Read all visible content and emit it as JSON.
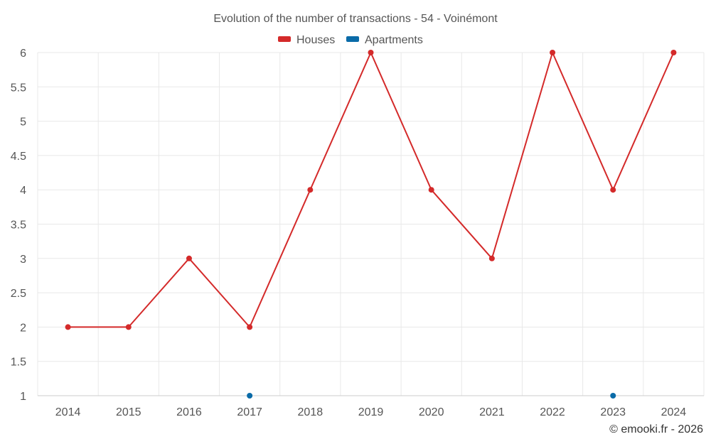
{
  "chart_data": {
    "type": "line",
    "title": "Evolution of the number of transactions - 54 - Voinémont",
    "categories": [
      "2014",
      "2015",
      "2016",
      "2017",
      "2018",
      "2019",
      "2020",
      "2021",
      "2022",
      "2023",
      "2024"
    ],
    "series": [
      {
        "name": "Houses",
        "color": "#d42a2a",
        "values": [
          2,
          2,
          3,
          2,
          4,
          6,
          4,
          3,
          6,
          4,
          6
        ]
      },
      {
        "name": "Apartments",
        "color": "#0a6ba8",
        "values": [
          null,
          null,
          null,
          1,
          null,
          null,
          null,
          null,
          null,
          1,
          null
        ]
      }
    ],
    "yticks": [
      "1",
      "1.5",
      "2",
      "2.5",
      "3",
      "3.5",
      "4",
      "4.5",
      "5",
      "5.5",
      "6"
    ],
    "ylim": [
      1,
      6
    ],
    "grid": true,
    "legend_position": "top-center"
  },
  "credit": "© emooki.fr - 2026"
}
